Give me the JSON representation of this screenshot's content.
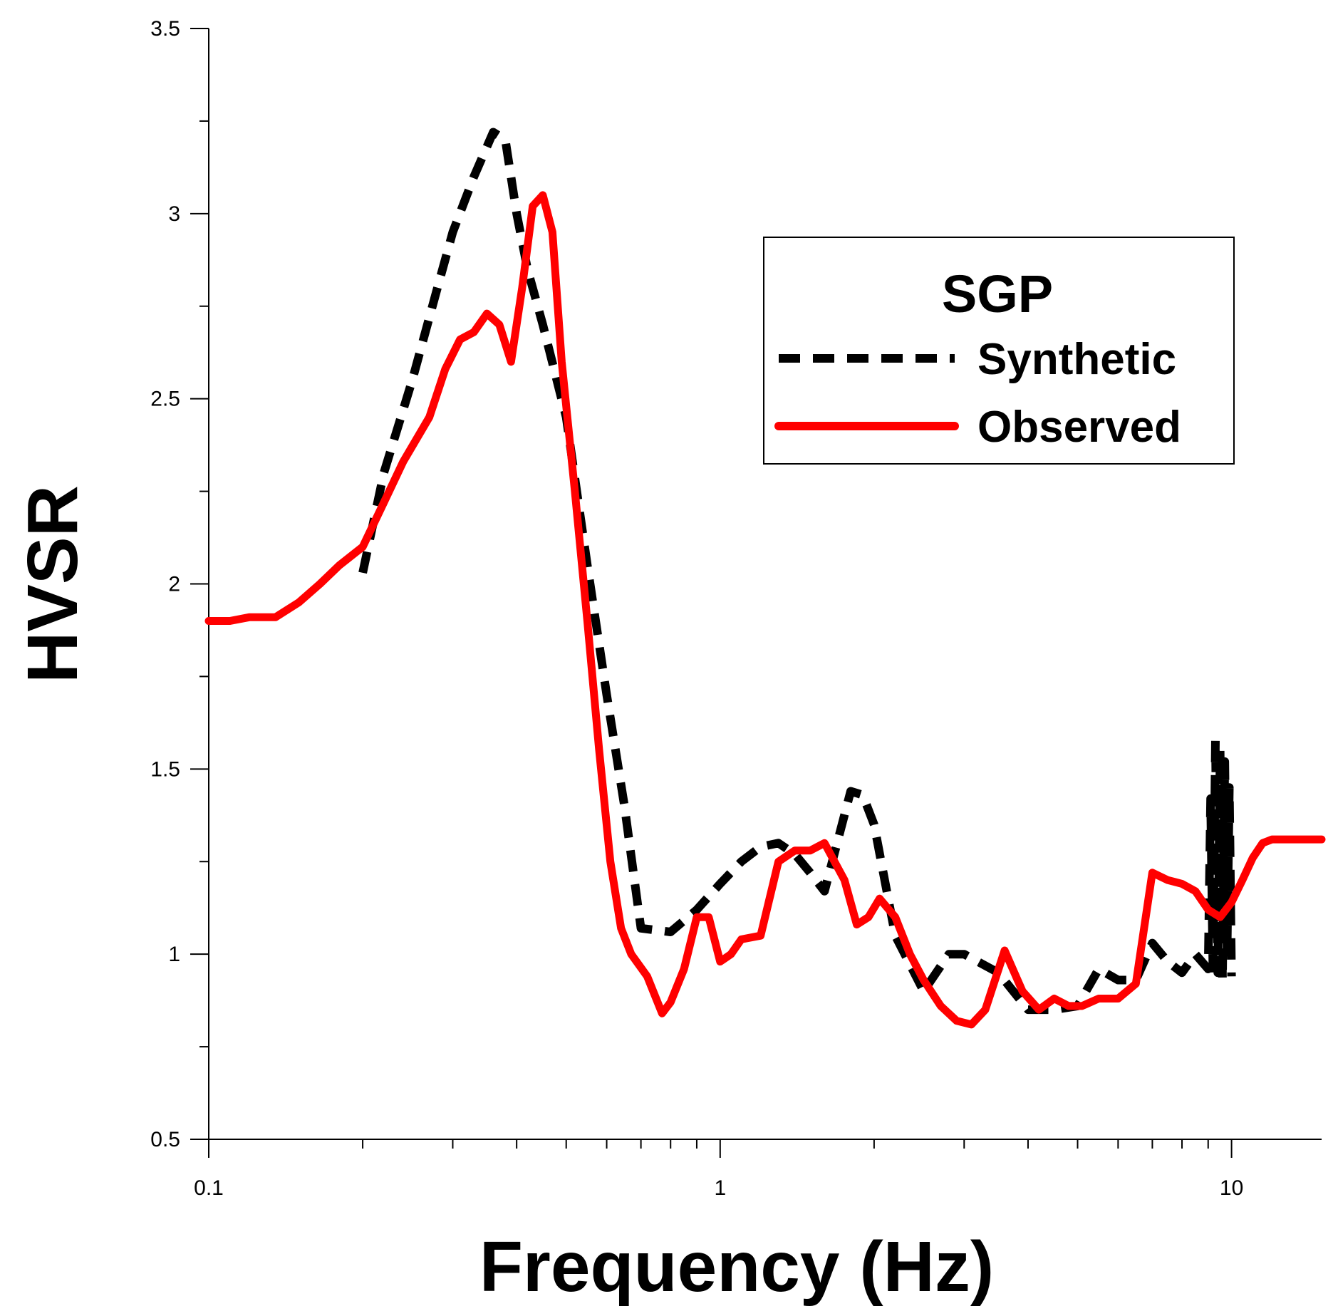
{
  "chart_data": {
    "type": "line",
    "title": "",
    "xlabel": "Frequency (Hz)",
    "ylabel": "HVSR",
    "xscale": "log",
    "xlim": [
      0.1,
      15
    ],
    "ylim": [
      0.5,
      3.5
    ],
    "x_tick_labels": [
      "0.1",
      "1",
      "10"
    ],
    "y_tick_labels": [
      "0.5",
      "1",
      "1.5",
      "2",
      "2.5",
      "3",
      "3.5"
    ],
    "grid": false,
    "legend": {
      "title": "SGP",
      "position": "top-right",
      "entries": [
        "Synthetic",
        "Observed"
      ]
    },
    "series": [
      {
        "name": "Synthetic",
        "color": "#000000",
        "style": "dashed",
        "x": [
          0.2,
          0.22,
          0.25,
          0.28,
          0.3,
          0.33,
          0.36,
          0.38,
          0.4,
          0.42,
          0.45,
          0.5,
          0.55,
          0.6,
          0.65,
          0.7,
          0.8,
          0.9,
          1.0,
          1.1,
          1.2,
          1.3,
          1.4,
          1.5,
          1.6,
          1.8,
          1.9,
          2.0,
          2.2,
          2.5,
          2.8,
          3.0,
          3.5,
          4.0,
          4.5,
          5.0,
          5.5,
          6.0,
          6.5,
          7.0,
          7.5,
          8.0,
          8.5,
          9.0,
          9.1,
          9.2,
          9.3,
          9.4,
          9.5,
          9.6,
          9.7,
          9.8,
          9.9,
          10.0
        ],
        "y": [
          2.03,
          2.3,
          2.55,
          2.8,
          2.95,
          3.1,
          3.22,
          3.2,
          3.0,
          2.85,
          2.7,
          2.45,
          2.05,
          1.7,
          1.4,
          1.07,
          1.06,
          1.12,
          1.19,
          1.25,
          1.29,
          1.3,
          1.27,
          1.22,
          1.17,
          1.44,
          1.43,
          1.35,
          1.05,
          0.9,
          1.0,
          1.0,
          0.95,
          0.85,
          0.85,
          0.86,
          0.96,
          0.93,
          0.93,
          1.03,
          0.98,
          0.95,
          1.0,
          0.96,
          1.42,
          0.94,
          1.58,
          0.95,
          1.55,
          0.93,
          1.52,
          1.0,
          1.45,
          0.94
        ]
      },
      {
        "name": "Observed",
        "color": "#ff0000",
        "style": "solid",
        "x": [
          0.1,
          0.11,
          0.12,
          0.135,
          0.15,
          0.165,
          0.18,
          0.2,
          0.22,
          0.24,
          0.27,
          0.29,
          0.31,
          0.33,
          0.35,
          0.37,
          0.39,
          0.41,
          0.43,
          0.45,
          0.47,
          0.49,
          0.52,
          0.55,
          0.58,
          0.61,
          0.64,
          0.67,
          0.72,
          0.77,
          0.8,
          0.85,
          0.9,
          0.95,
          1.0,
          1.05,
          1.1,
          1.2,
          1.3,
          1.4,
          1.5,
          1.6,
          1.75,
          1.85,
          1.95,
          2.05,
          2.2,
          2.35,
          2.5,
          2.7,
          2.9,
          3.1,
          3.3,
          3.6,
          3.9,
          4.2,
          4.5,
          4.8,
          5.1,
          5.5,
          6.0,
          6.5,
          7.0,
          7.5,
          8.0,
          8.5,
          9.0,
          9.5,
          10.0,
          10.5,
          11.0,
          11.5,
          12.0,
          13.0,
          14.0,
          15.0
        ],
        "y": [
          1.9,
          1.9,
          1.91,
          1.91,
          1.95,
          2.0,
          2.05,
          2.1,
          2.22,
          2.33,
          2.45,
          2.58,
          2.66,
          2.68,
          2.73,
          2.7,
          2.6,
          2.8,
          3.02,
          3.05,
          2.95,
          2.6,
          2.25,
          1.9,
          1.55,
          1.25,
          1.07,
          1.0,
          0.94,
          0.84,
          0.87,
          0.96,
          1.1,
          1.1,
          0.98,
          1.0,
          1.04,
          1.05,
          1.25,
          1.28,
          1.28,
          1.3,
          1.2,
          1.08,
          1.1,
          1.15,
          1.1,
          1.0,
          0.93,
          0.86,
          0.82,
          0.81,
          0.85,
          1.01,
          0.9,
          0.85,
          0.88,
          0.86,
          0.86,
          0.88,
          0.88,
          0.92,
          1.22,
          1.2,
          1.19,
          1.17,
          1.12,
          1.1,
          1.14,
          1.2,
          1.26,
          1.3,
          1.31,
          1.31,
          1.31,
          1.31
        ]
      }
    ]
  }
}
